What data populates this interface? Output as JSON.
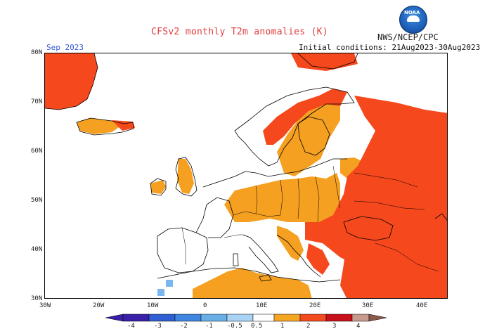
{
  "header": {
    "title": "CFSv2 monthly T2m anomalies (K)",
    "agency": "NWS/NCEP/CPC",
    "logo_text": "NOAA",
    "month": "Sep 2023",
    "initial_conditions": "Initial conditions: 21Aug2023-30Aug2023"
  },
  "axes": {
    "lat_labels": [
      "80N",
      "70N",
      "60N",
      "50N",
      "40N",
      "30N"
    ],
    "lon_labels": [
      "30W",
      "20W",
      "10W",
      "0",
      "10E",
      "20E",
      "30E",
      "40E"
    ]
  },
  "legend": {
    "labels": [
      "-4",
      "-3",
      "-2",
      "-1",
      "-0.5",
      "0.5",
      "1",
      "2",
      "3",
      "4"
    ],
    "colors": [
      "#3a1fa8",
      "#2f5fd0",
      "#3f86e0",
      "#6aaee8",
      "#a9d3f2",
      "#ffffff",
      "#f5a623",
      "#f44a1f",
      "#c8101a",
      "#c79a8d",
      "#8a5a4a"
    ]
  },
  "colors": {
    "warm_05_1": "#f5a020",
    "warm_1_2": "#f5481c",
    "cool_05_1": "#7ab6ef",
    "coast": "#000000",
    "title": "#e23b3b",
    "month": "#3a57d8"
  }
}
